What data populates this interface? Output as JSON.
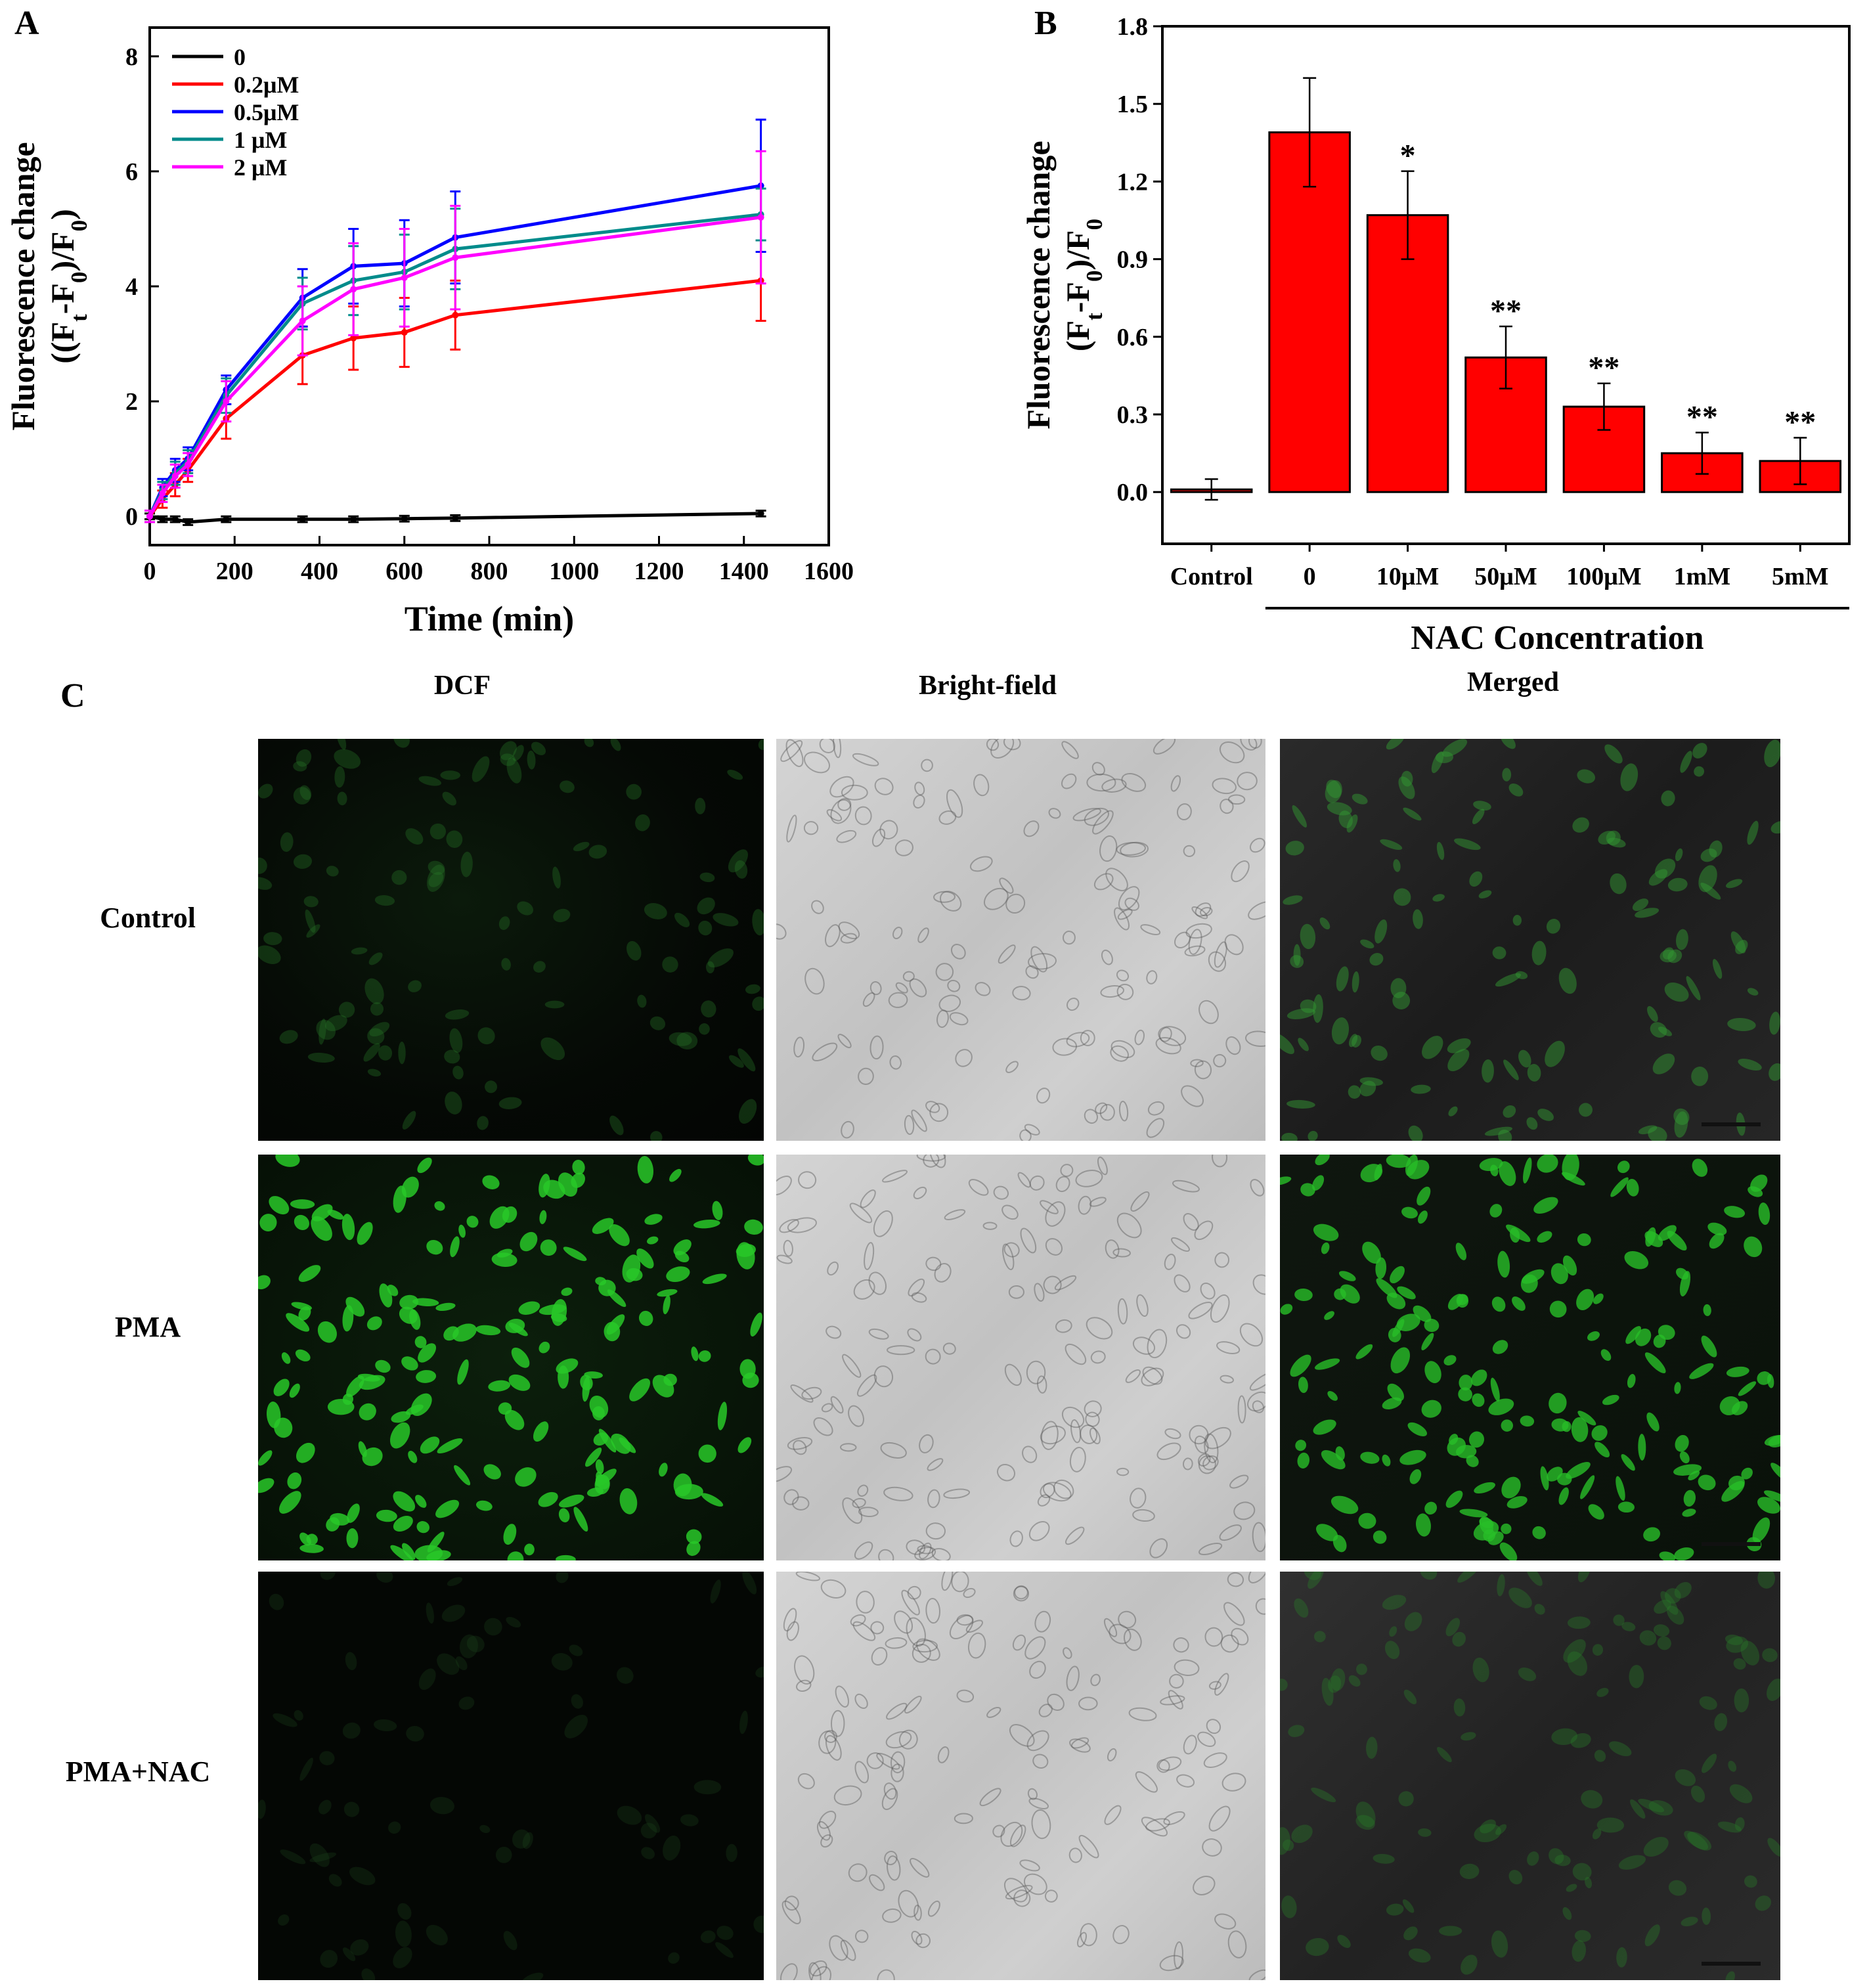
{
  "panels": {
    "a_letter": "A",
    "b_letter": "B",
    "c_letter": "C"
  },
  "chart_data": [
    {
      "type": "line",
      "panel": "A",
      "xlabel": "Time (min)",
      "ylabel_line1": "Fluorescence change",
      "ylabel_line2": "((Ft-F0)/F0)",
      "xlim": [
        0,
        1600
      ],
      "ylim": [
        -0.5,
        8.5
      ],
      "xticks": [
        0,
        200,
        400,
        600,
        800,
        1000,
        1200,
        1400,
        1600
      ],
      "yticks": [
        0,
        2,
        4,
        6,
        8
      ],
      "legend_placement": "top-left",
      "x": [
        0,
        30,
        60,
        90,
        180,
        360,
        480,
        600,
        720,
        1440
      ],
      "series": [
        {
          "name": "0",
          "color": "#000000",
          "values": [
            0,
            -0.05,
            -0.05,
            -0.1,
            -0.05,
            -0.05,
            -0.05,
            -0.04,
            -0.03,
            0.05
          ],
          "errors": [
            0.05,
            0.05,
            0.05,
            0.05,
            0.05,
            0.05,
            0.05,
            0.05,
            0.05,
            0.05
          ]
        },
        {
          "name": "0.2μM",
          "color": "#ff0000",
          "values": [
            0,
            0.3,
            0.55,
            0.8,
            1.7,
            2.8,
            3.1,
            3.2,
            3.5,
            4.1
          ],
          "errors": [
            0.1,
            0.15,
            0.2,
            0.2,
            0.35,
            0.5,
            0.55,
            0.6,
            0.6,
            0.7
          ]
        },
        {
          "name": "0.5μM",
          "color": "#0000ff",
          "values": [
            0,
            0.5,
            0.8,
            1.0,
            2.2,
            3.8,
            4.35,
            4.4,
            4.85,
            5.75
          ],
          "errors": [
            0.1,
            0.15,
            0.2,
            0.2,
            0.25,
            0.5,
            0.65,
            0.75,
            0.8,
            1.15
          ]
        },
        {
          "name": "1 μM",
          "color": "#008b8b",
          "values": [
            0,
            0.45,
            0.75,
            0.95,
            2.1,
            3.7,
            4.1,
            4.25,
            4.65,
            5.25
          ],
          "errors": [
            0.1,
            0.15,
            0.2,
            0.2,
            0.3,
            0.45,
            0.6,
            0.65,
            0.7,
            0.45
          ]
        },
        {
          "name": "2 μM",
          "color": "#ff00ff",
          "values": [
            0,
            0.4,
            0.7,
            0.9,
            2.0,
            3.4,
            3.95,
            4.15,
            4.5,
            5.2
          ],
          "errors": [
            0.1,
            0.15,
            0.2,
            0.2,
            0.35,
            0.6,
            0.8,
            0.85,
            0.9,
            1.15
          ]
        }
      ]
    },
    {
      "type": "bar",
      "panel": "B",
      "ylabel_line1": "Fluorescence change",
      "ylabel_line2": "(Ft-F0)/F0",
      "ylim": [
        -0.2,
        1.8
      ],
      "yticks": [
        0.0,
        0.3,
        0.6,
        0.9,
        1.2,
        1.5,
        1.8
      ],
      "categories": [
        "Control",
        "0",
        "10μM",
        "50μM",
        "100μM",
        "1mM",
        "5mM"
      ],
      "values": [
        0.01,
        1.39,
        1.07,
        0.52,
        0.33,
        0.15,
        0.12
      ],
      "errors": [
        0.04,
        0.21,
        0.17,
        0.12,
        0.09,
        0.08,
        0.09
      ],
      "significance": [
        "",
        "",
        "*",
        "**",
        "**",
        "**",
        "**"
      ],
      "bar_color": "#ff0000",
      "group_label": "NAC Concentration"
    }
  ],
  "micrographs": {
    "columns": [
      "DCF",
      "Bright-field",
      "Merged"
    ],
    "rows": [
      "Control",
      "PMA",
      "PMA+NAC"
    ]
  }
}
